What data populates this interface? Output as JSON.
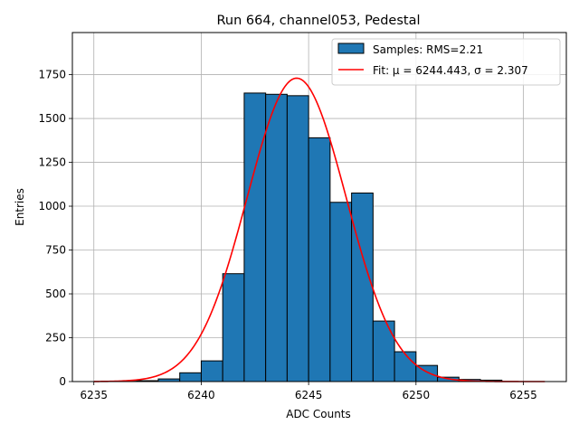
{
  "chart_data": {
    "type": "bar",
    "title": "Run 664, channel053, Pedestal",
    "xlabel": "ADC Counts",
    "ylabel": "Entries",
    "xlim": [
      6234,
      6257
    ],
    "ylim": [
      0,
      1990
    ],
    "x_ticks": [
      6235,
      6240,
      6245,
      6250,
      6255
    ],
    "y_ticks": [
      0,
      250,
      500,
      750,
      1000,
      1250,
      1500,
      1750
    ],
    "grid": true,
    "legend_position": "top-right",
    "colors": {
      "bars": "#1f77b4",
      "bar_edge": "#000000",
      "fit": "#ff0000",
      "grid": "#b0b0b0"
    },
    "bins": [
      {
        "left": 6236,
        "right": 6237,
        "value": 2
      },
      {
        "left": 6237,
        "right": 6238,
        "value": 5
      },
      {
        "left": 6238,
        "right": 6239,
        "value": 15
      },
      {
        "left": 6239,
        "right": 6240,
        "value": 50
      },
      {
        "left": 6240,
        "right": 6241,
        "value": 118
      },
      {
        "left": 6241,
        "right": 6242,
        "value": 615
      },
      {
        "left": 6242,
        "right": 6243,
        "value": 1645
      },
      {
        "left": 6243,
        "right": 6244,
        "value": 1638
      },
      {
        "left": 6244,
        "right": 6245,
        "value": 1630
      },
      {
        "left": 6245,
        "right": 6246,
        "value": 1390
      },
      {
        "left": 6246,
        "right": 6247,
        "value": 1022
      },
      {
        "left": 6247,
        "right": 6248,
        "value": 1075
      },
      {
        "left": 6248,
        "right": 6249,
        "value": 345
      },
      {
        "left": 6249,
        "right": 6250,
        "value": 170
      },
      {
        "left": 6250,
        "right": 6251,
        "value": 92
      },
      {
        "left": 6251,
        "right": 6252,
        "value": 25
      },
      {
        "left": 6252,
        "right": 6253,
        "value": 12
      },
      {
        "left": 6253,
        "right": 6254,
        "value": 8
      }
    ],
    "fit": {
      "mu": 6244.443,
      "sigma": 2.307,
      "amplitude": 1730,
      "x_range": [
        6235,
        6256
      ]
    },
    "legend": [
      {
        "label": "Samples: RMS=2.21",
        "kind": "patch"
      },
      {
        "label": "Fit: μ = 6244.443, σ = 2.307",
        "kind": "line"
      }
    ]
  }
}
